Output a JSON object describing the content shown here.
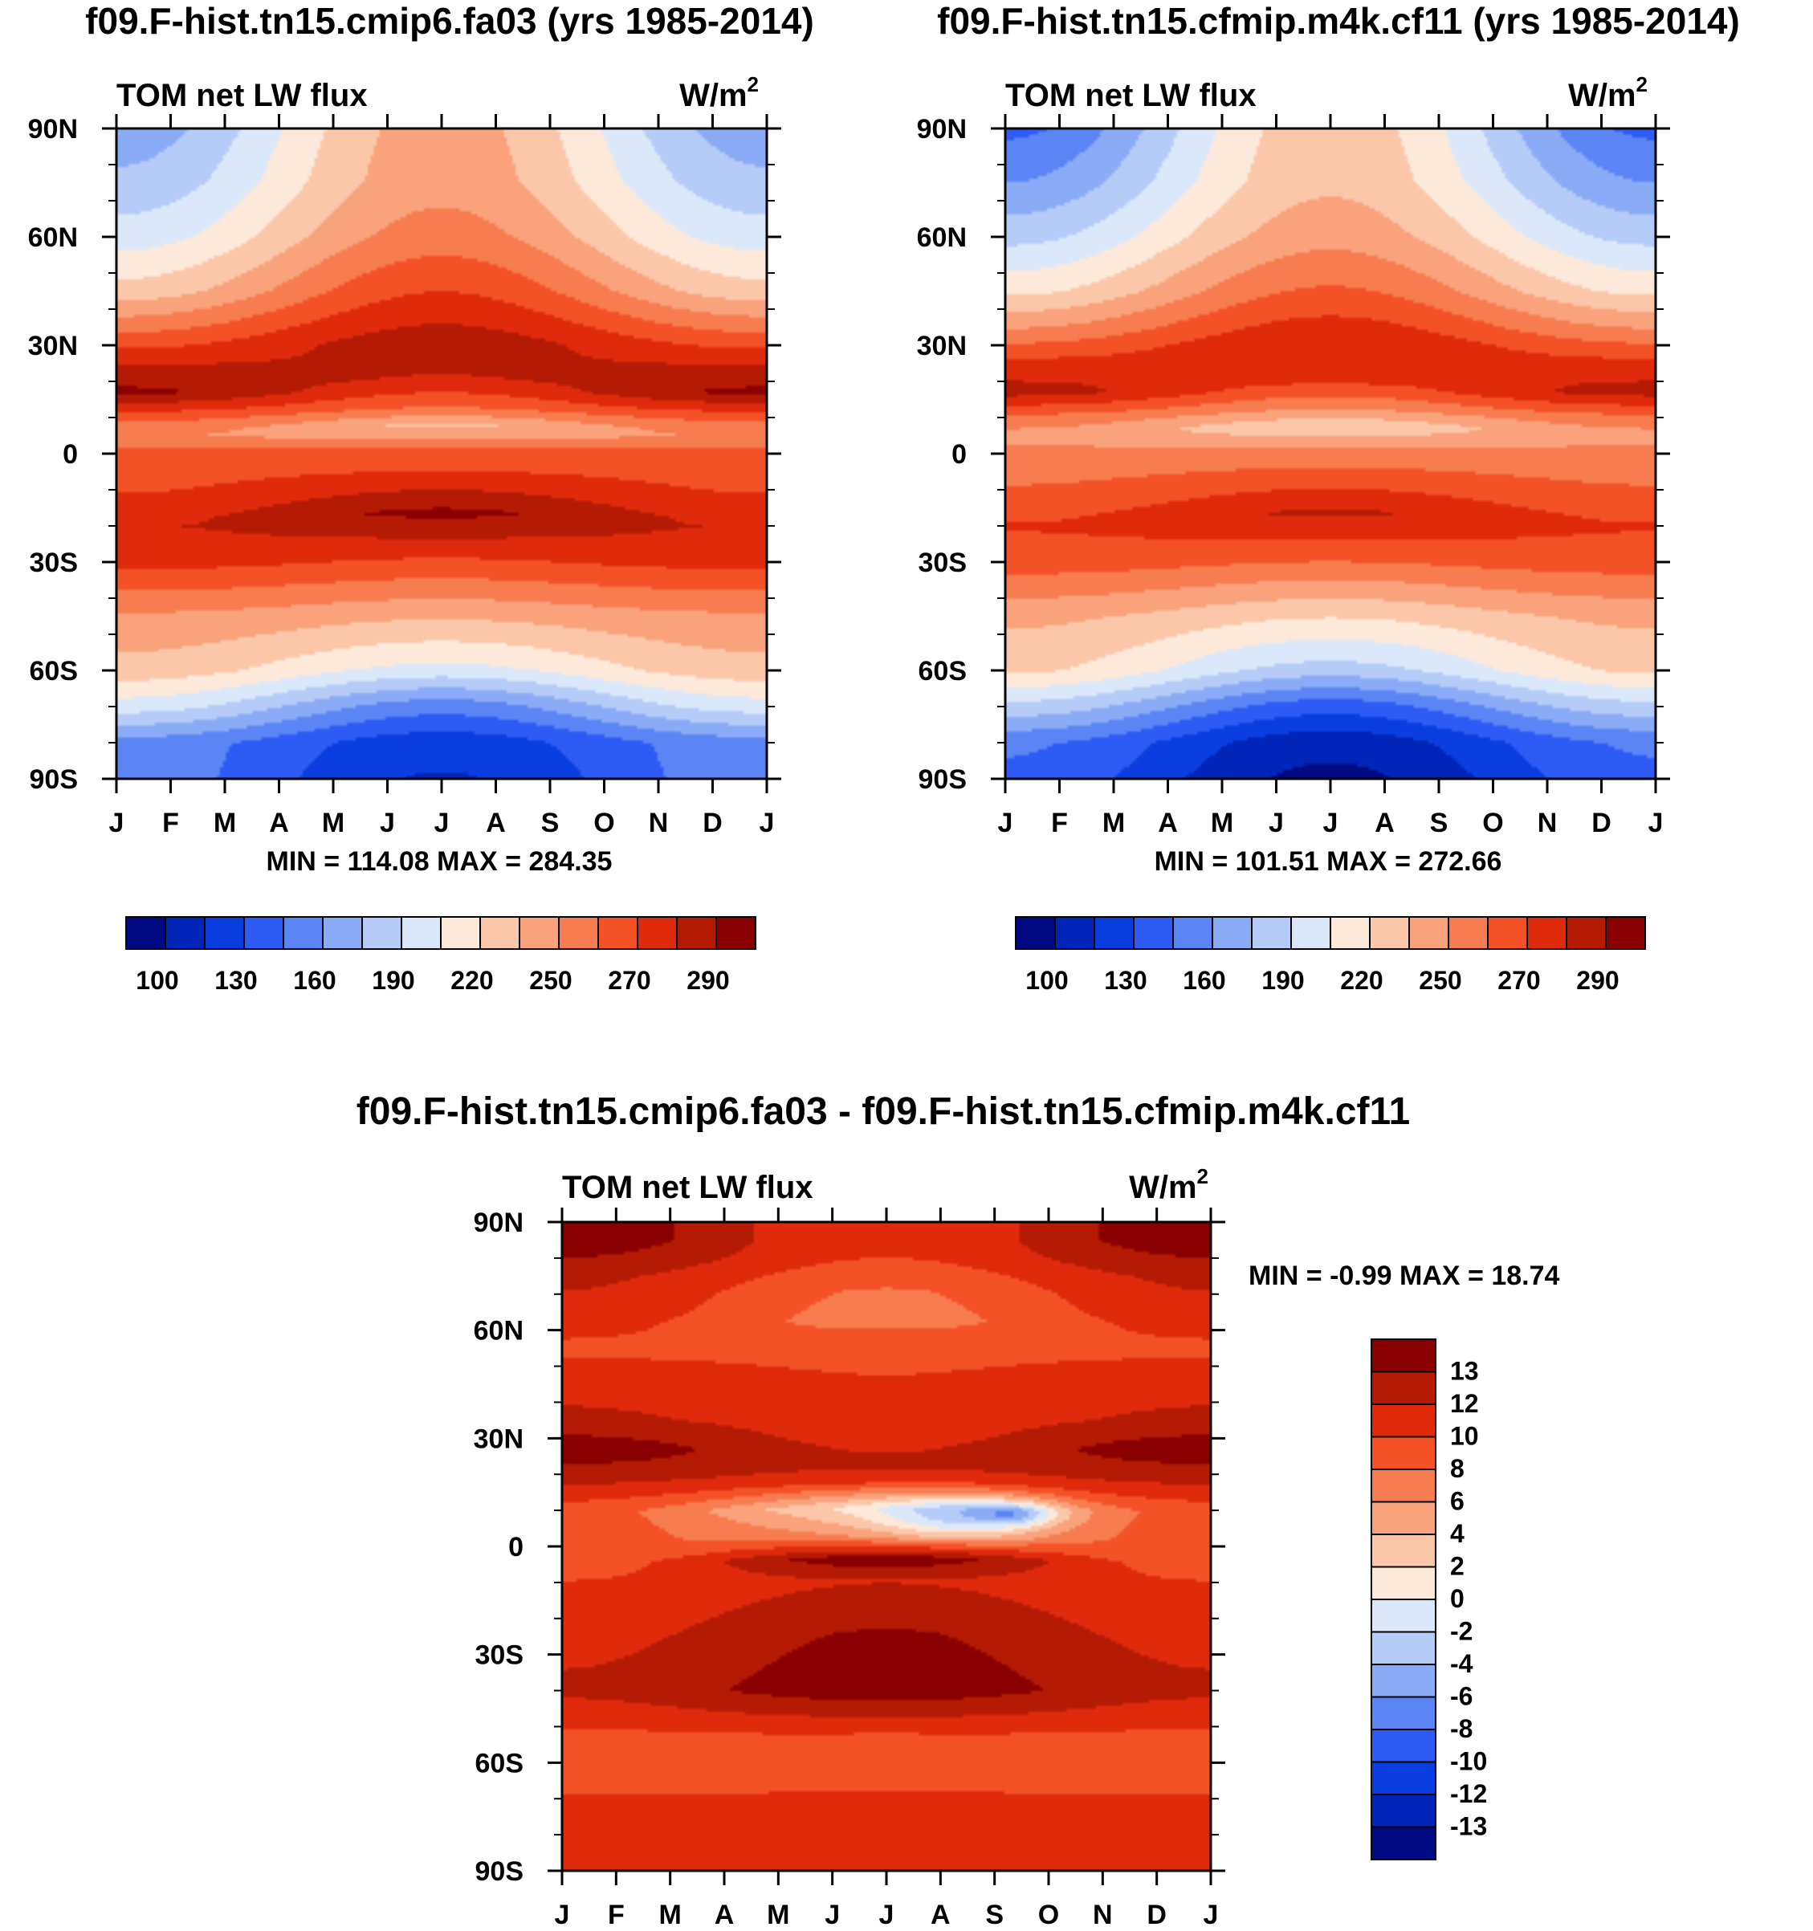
{
  "chart_data": [
    {
      "type": "heatmap",
      "id": "left",
      "title": "f09.F-hist.tn15.cmip6.fa03 (yrs 1985-2014)",
      "subtitle_left": "TOM net LW flux",
      "units_base": "W/m",
      "units_exp": "2",
      "x_ticks": [
        "J",
        "F",
        "M",
        "A",
        "M",
        "J",
        "J",
        "A",
        "S",
        "O",
        "N",
        "D",
        "J"
      ],
      "y_ticks": [
        "90N",
        "60N",
        "30N",
        "0",
        "30S",
        "60S",
        "90S"
      ],
      "ylim": [
        -90,
        90
      ],
      "stats": "MIN = 114.08 MAX = 284.35",
      "colorbar_labels": [
        "100",
        "130",
        "160",
        "190",
        "220",
        "250",
        "270",
        "290"
      ],
      "colorbar_colors": [
        "#000a82",
        "#0025b8",
        "#0a3ee0",
        "#2e5bf5",
        "#5b85f5",
        "#8aabf5",
        "#b5cbf8",
        "#dbe8fa",
        "#fde9d9",
        "#fcc7a9",
        "#f9a27c",
        "#f77c4f",
        "#f45226",
        "#e02a0c",
        "#b51b04",
        "#8a0000"
      ],
      "profile_jan": [
        [
          -90,
          150
        ],
        [
          -80,
          150
        ],
        [
          -70,
          185
        ],
        [
          -60,
          210
        ],
        [
          -45,
          225
        ],
        [
          -30,
          255
        ],
        [
          -20,
          262
        ],
        [
          -10,
          250
        ],
        [
          0,
          245
        ],
        [
          5,
          228
        ],
        [
          10,
          243
        ],
        [
          17,
          278
        ],
        [
          25,
          262
        ],
        [
          35,
          235
        ],
        [
          45,
          208
        ],
        [
          60,
          185
        ],
        [
          75,
          170
        ],
        [
          90,
          160
        ]
      ],
      "profile_jul": [
        [
          -90,
          118
        ],
        [
          -80,
          125
        ],
        [
          -70,
          150
        ],
        [
          -60,
          188
        ],
        [
          -45,
          218
        ],
        [
          -30,
          250
        ],
        [
          -17,
          278
        ],
        [
          -5,
          250
        ],
        [
          0,
          245
        ],
        [
          7,
          212
        ],
        [
          12,
          238
        ],
        [
          20,
          262
        ],
        [
          30,
          270
        ],
        [
          45,
          250
        ],
        [
          60,
          232
        ],
        [
          75,
          222
        ],
        [
          90,
          220
        ]
      ]
    },
    {
      "type": "heatmap",
      "id": "right",
      "title": "f09.F-hist.tn15.cfmip.m4k.cf11 (yrs 1985-2014)",
      "subtitle_left": "TOM net LW flux",
      "units_base": "W/m",
      "units_exp": "2",
      "x_ticks": [
        "J",
        "F",
        "M",
        "A",
        "M",
        "J",
        "J",
        "A",
        "S",
        "O",
        "N",
        "D",
        "J"
      ],
      "y_ticks": [
        "90N",
        "60N",
        "30N",
        "0",
        "30S",
        "60S",
        "90S"
      ],
      "ylim": [
        -90,
        90
      ],
      "stats": "MIN = 101.51 MAX = 272.66",
      "colorbar_labels": [
        "100",
        "130",
        "160",
        "190",
        "220",
        "250",
        "270",
        "290"
      ],
      "colorbar_colors": [
        "#000a82",
        "#0025b8",
        "#0a3ee0",
        "#2e5bf5",
        "#5b85f5",
        "#8aabf5",
        "#b5cbf8",
        "#dbe8fa",
        "#fde9d9",
        "#fcc7a9",
        "#f9a27c",
        "#f77c4f",
        "#f45226",
        "#e02a0c",
        "#b51b04",
        "#8a0000"
      ],
      "profile_jan": [
        [
          -90,
          140
        ],
        [
          -80,
          145
        ],
        [
          -70,
          175
        ],
        [
          -60,
          205
        ],
        [
          -45,
          218
        ],
        [
          -30,
          245
        ],
        [
          -20,
          252
        ],
        [
          -10,
          240
        ],
        [
          0,
          232
        ],
        [
          5,
          222
        ],
        [
          10,
          235
        ],
        [
          17,
          268
        ],
        [
          25,
          255
        ],
        [
          35,
          226
        ],
        [
          45,
          200
        ],
        [
          60,
          175
        ],
        [
          75,
          155
        ],
        [
          90,
          140
        ]
      ],
      "profile_jul": [
        [
          -90,
          104
        ],
        [
          -80,
          112
        ],
        [
          -70,
          138
        ],
        [
          -60,
          175
        ],
        [
          -45,
          205
        ],
        [
          -30,
          240
        ],
        [
          -17,
          265
        ],
        [
          -5,
          240
        ],
        [
          0,
          232
        ],
        [
          7,
          205
        ],
        [
          12,
          228
        ],
        [
          20,
          255
        ],
        [
          30,
          262
        ],
        [
          45,
          240
        ],
        [
          60,
          222
        ],
        [
          75,
          212
        ],
        [
          90,
          210
        ]
      ]
    },
    {
      "type": "heatmap",
      "id": "diff",
      "title": "f09.F-hist.tn15.cmip6.fa03 - f09.F-hist.tn15.cfmip.m4k.cf11",
      "subtitle_left": "TOM net LW flux",
      "units_base": "W/m",
      "units_exp": "2",
      "x_ticks": [
        "J",
        "F",
        "M",
        "A",
        "M",
        "J",
        "J",
        "A",
        "S",
        "O",
        "N",
        "D",
        "J"
      ],
      "y_ticks": [
        "90N",
        "60N",
        "30N",
        "0",
        "30S",
        "60S",
        "90S"
      ],
      "ylim": [
        -90,
        90
      ],
      "stats": "MIN =  -0.99 MAX =  18.74",
      "colorbar_labels": [
        "13",
        "12",
        "10",
        "8",
        "6",
        "4",
        "2",
        "0",
        "-2",
        "-4",
        "-6",
        "-8",
        "-10",
        "-12",
        "-13"
      ],
      "colorbar_colors": [
        "#8a0000",
        "#b51b04",
        "#e02a0c",
        "#f45226",
        "#f77c4f",
        "#f9a27c",
        "#fcc7a9",
        "#fde9d9",
        "#dbe8fa",
        "#b5cbf8",
        "#8aabf5",
        "#5b85f5",
        "#2e5bf5",
        "#0a3ee0",
        "#0025b8",
        "#000a82"
      ],
      "profile_jan": [
        [
          -90,
          10
        ],
        [
          -70,
          9
        ],
        [
          -55,
          8
        ],
        [
          -40,
          11
        ],
        [
          -25,
          10
        ],
        [
          -10,
          9
        ],
        [
          -2,
          7.5
        ],
        [
          5,
          8
        ],
        [
          10,
          8
        ],
        [
          17,
          10.5
        ],
        [
          27,
          13.5
        ],
        [
          35,
          11
        ],
        [
          45,
          10
        ],
        [
          55,
          8.5
        ],
        [
          65,
          10
        ],
        [
          75,
          11
        ],
        [
          85,
          13.5
        ],
        [
          90,
          13.5
        ]
      ],
      "profile_jul": [
        [
          -90,
          10
        ],
        [
          -70,
          9
        ],
        [
          -55,
          8
        ],
        [
          -40,
          13.5
        ],
        [
          -25,
          12.5
        ],
        [
          -10,
          10.5
        ],
        [
          -4,
          13.5
        ],
        [
          2,
          6
        ],
        [
          10,
          2
        ],
        [
          17,
          9
        ],
        [
          22,
          11
        ],
        [
          30,
          10
        ],
        [
          45,
          9
        ],
        [
          55,
          8.5
        ],
        [
          62,
          6.5
        ],
        [
          70,
          7
        ],
        [
          80,
          9
        ],
        [
          90,
          9
        ]
      ],
      "features": [
        {
          "lat": 8,
          "month": 7.5,
          "dlat": 6,
          "dmon": 1.6,
          "amp": -1.5
        },
        {
          "lat": 9,
          "month": 8.4,
          "dlat": 3,
          "dmon": 0.7,
          "amp": -1.2
        }
      ]
    }
  ]
}
